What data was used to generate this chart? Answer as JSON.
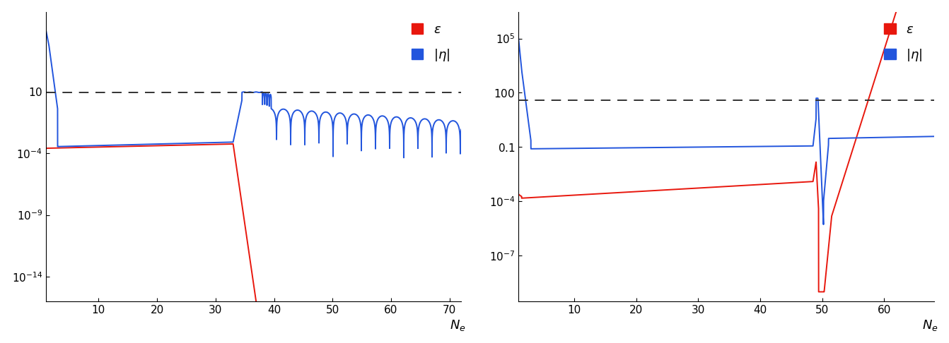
{
  "left_panel": {
    "xlim": [
      1,
      72
    ],
    "ylim": [
      1e-16,
      30000000.0
    ],
    "xticks": [
      10,
      20,
      30,
      40,
      50,
      60,
      70
    ],
    "yticks": [
      1e-14,
      1e-09,
      0.0001,
      10
    ],
    "ytick_labels": [
      "$10^{-14}$",
      "$10^{-9}$",
      "$10^{-4}$",
      "$10$"
    ],
    "dashed_y": 9.0,
    "red_color": "#e8170d",
    "blue_color": "#2255dd",
    "dashed_color": "#333333"
  },
  "right_panel": {
    "xlim": [
      1,
      68
    ],
    "ylim": [
      3e-10,
      3000000.0
    ],
    "xticks": [
      10,
      20,
      30,
      40,
      50,
      60
    ],
    "yticks": [
      1e-07,
      0.0001,
      0.1,
      100,
      100000.0
    ],
    "ytick_labels": [
      "$10^{-7}$",
      "$10^{-4}$",
      "$0.1$",
      "$100$",
      "$10^{5}$"
    ],
    "dashed_y": 40.0,
    "red_color": "#e8170d",
    "blue_color": "#2255dd",
    "dashed_color": "#333333"
  }
}
